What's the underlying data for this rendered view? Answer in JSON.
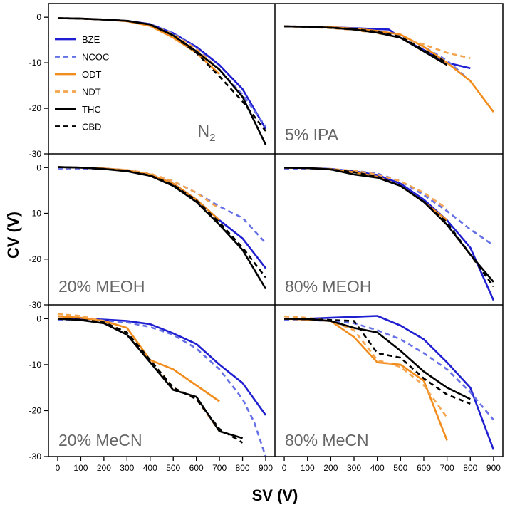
{
  "figure": {
    "ylabel": "CV (V)",
    "xlabel": "SV (V)",
    "legend": [
      "BZE",
      "NCOC",
      "ODT",
      "NDT",
      "THC",
      "CBD"
    ]
  },
  "series_styles": {
    "BZE": {
      "color": "#1f1fd1",
      "dash": "solid"
    },
    "NCOC": {
      "color": "#6670e6",
      "dash": "dashed"
    },
    "ODT": {
      "color": "#f28c1c",
      "dash": "solid"
    },
    "NDT": {
      "color": "#f5a550",
      "dash": "dashed"
    },
    "THC": {
      "color": "#000000",
      "dash": "solid"
    },
    "CBD": {
      "color": "#000000",
      "dash": "dashed"
    }
  },
  "chart_data": [
    {
      "type": "line",
      "panel_label": "N",
      "panel_label_sub": "2",
      "panel_position": "top-left",
      "xlim": [
        -40,
        940
      ],
      "ylim": [
        -30,
        3
      ],
      "xticks": [],
      "yticks": [
        0,
        -10,
        -20,
        -30
      ],
      "legend_position": "left",
      "series": [
        {
          "name": "BZE",
          "x": [
            0,
            100,
            200,
            300,
            400,
            500,
            600,
            700,
            800,
            900
          ],
          "y": [
            -0.2,
            -0.3,
            -0.5,
            -0.8,
            -1.5,
            -3.5,
            -6.5,
            -10.5,
            -15.8,
            -24.5
          ]
        },
        {
          "name": "NCOC",
          "x": [
            0,
            100,
            200,
            300,
            400,
            500,
            600,
            700,
            800,
            900
          ],
          "y": [
            -0.2,
            -0.3,
            -0.5,
            -0.8,
            -1.5,
            -3.5,
            -6.8,
            -11.5,
            -17.0,
            -24.0
          ]
        },
        {
          "name": "ODT",
          "x": [
            0,
            100,
            200,
            300,
            400,
            500,
            600,
            700
          ],
          "y": [
            -0.2,
            -0.3,
            -0.5,
            -0.9,
            -1.9,
            -4.5,
            -7.8,
            -12.5
          ]
        },
        {
          "name": "NDT",
          "x": [
            0,
            100,
            200,
            300,
            400,
            500,
            600,
            700
          ],
          "y": [
            -0.2,
            -0.3,
            -0.5,
            -0.8,
            -1.6,
            -3.8,
            -7.0,
            -11.5
          ]
        },
        {
          "name": "THC",
          "x": [
            0,
            100,
            200,
            300,
            400,
            500,
            600,
            700,
            800,
            900
          ],
          "y": [
            -0.2,
            -0.3,
            -0.5,
            -0.8,
            -1.6,
            -4.0,
            -7.5,
            -11.5,
            -17.5,
            -28.0
          ]
        },
        {
          "name": "CBD",
          "x": [
            0,
            100,
            200,
            300,
            400,
            500,
            600,
            700,
            800,
            900
          ],
          "y": [
            -0.2,
            -0.3,
            -0.5,
            -0.8,
            -1.6,
            -4.0,
            -7.8,
            -13.0,
            -18.5,
            -25.0
          ]
        }
      ]
    },
    {
      "type": "line",
      "panel_label": "5% IPA",
      "panel_position": "top-right",
      "xlim": [
        -40,
        940
      ],
      "ylim": [
        -30,
        3
      ],
      "xticks": [],
      "yticks": [],
      "series": [
        {
          "name": "BZE",
          "x": [
            0,
            100,
            200,
            300,
            400,
            450,
            500,
            600,
            700,
            800
          ],
          "y": [
            -2.0,
            -2.1,
            -2.2,
            -2.4,
            -2.6,
            -2.7,
            -4.5,
            -7.2,
            -10.0,
            -11.2
          ]
        },
        {
          "name": "NCOC",
          "x": [
            0,
            100,
            200,
            300,
            400,
            500,
            600,
            700,
            800
          ],
          "y": [
            -2.0,
            -2.1,
            -2.2,
            -2.5,
            -3.0,
            -4.0,
            -6.5,
            -9.5,
            -14.0
          ]
        },
        {
          "name": "ODT",
          "x": [
            0,
            100,
            200,
            300,
            400,
            500,
            600,
            700,
            800,
            900
          ],
          "y": [
            -2.0,
            -2.1,
            -2.2,
            -2.5,
            -3.0,
            -3.8,
            -6.5,
            -10.0,
            -14.0,
            -20.8
          ]
        },
        {
          "name": "NDT",
          "x": [
            0,
            100,
            200,
            300,
            400,
            500,
            600,
            700,
            800
          ],
          "y": [
            -2.0,
            -2.2,
            -2.4,
            -2.8,
            -3.5,
            -4.5,
            -6.0,
            -7.8,
            -9.0
          ]
        },
        {
          "name": "THC",
          "x": [
            0,
            100,
            200,
            300,
            400,
            500,
            600,
            700
          ],
          "y": [
            -2.0,
            -2.1,
            -2.3,
            -2.7,
            -3.4,
            -4.5,
            -7.5,
            -10.5
          ]
        },
        {
          "name": "CBD",
          "x": [
            0,
            100,
            200,
            300,
            400,
            500,
            600,
            700
          ],
          "y": [
            -2.0,
            -2.1,
            -2.3,
            -2.6,
            -3.2,
            -4.3,
            -7.2,
            -10.0
          ]
        }
      ]
    },
    {
      "type": "line",
      "panel_label": "20% MEOH",
      "panel_position": "middle-left",
      "xlim": [
        -40,
        940
      ],
      "ylim": [
        -30,
        3
      ],
      "xticks": [],
      "yticks": [
        0,
        -10,
        -20,
        -30
      ],
      "series": [
        {
          "name": "BZE",
          "x": [
            0,
            100,
            200,
            300,
            400,
            500,
            600,
            700,
            800,
            900
          ],
          "y": [
            0.1,
            0.0,
            -0.2,
            -0.6,
            -1.5,
            -3.5,
            -7.0,
            -11.5,
            -15.5,
            -22.0
          ]
        },
        {
          "name": "NCOC",
          "x": [
            0,
            100,
            200,
            300,
            400,
            500,
            600,
            700,
            800,
            900
          ],
          "y": [
            -0.2,
            -0.2,
            -0.3,
            -0.6,
            -1.4,
            -3.0,
            -5.5,
            -8.5,
            -11.0,
            -16.5
          ]
        },
        {
          "name": "ODT",
          "x": [
            0,
            100,
            200,
            300,
            400,
            500,
            600,
            700
          ],
          "y": [
            0.1,
            0.0,
            -0.2,
            -0.6,
            -1.5,
            -3.5,
            -7.0,
            -11.5
          ]
        },
        {
          "name": "NDT",
          "x": [
            0,
            100,
            200,
            300,
            400,
            500,
            600,
            700
          ],
          "y": [
            0.1,
            0.0,
            -0.2,
            -0.5,
            -1.3,
            -3.0,
            -5.5,
            -9.0
          ]
        },
        {
          "name": "THC",
          "x": [
            0,
            100,
            200,
            300,
            400,
            500,
            600,
            700,
            800,
            900
          ],
          "y": [
            0.1,
            0.0,
            -0.3,
            -0.8,
            -1.8,
            -4.0,
            -7.5,
            -12.5,
            -18.0,
            -26.5
          ]
        },
        {
          "name": "CBD",
          "x": [
            0,
            100,
            200,
            300,
            400,
            500,
            600,
            700,
            800,
            900
          ],
          "y": [
            0.1,
            0.0,
            -0.3,
            -0.7,
            -1.7,
            -3.8,
            -7.2,
            -12.0,
            -17.5,
            -24.0
          ]
        }
      ]
    },
    {
      "type": "line",
      "panel_label": "80% MEOH",
      "panel_position": "middle-right",
      "xlim": [
        -40,
        940
      ],
      "ylim": [
        -30,
        3
      ],
      "xticks": [],
      "yticks": [],
      "series": [
        {
          "name": "BZE",
          "x": [
            0,
            100,
            200,
            300,
            400,
            500,
            600,
            700,
            800,
            900
          ],
          "y": [
            0.0,
            -0.1,
            -0.3,
            -0.8,
            -1.6,
            -3.5,
            -7.0,
            -11.5,
            -17.5,
            -29.0
          ]
        },
        {
          "name": "NCOC",
          "x": [
            0,
            100,
            200,
            300,
            400,
            500,
            600,
            700,
            800,
            900
          ],
          "y": [
            -0.3,
            -0.3,
            -0.4,
            -0.7,
            -1.3,
            -3.0,
            -6.0,
            -9.5,
            -13.5,
            -17.0
          ]
        },
        {
          "name": "ODT",
          "x": [
            0,
            100,
            200,
            300,
            400,
            500,
            600,
            700
          ],
          "y": [
            0.0,
            -0.1,
            -0.4,
            -1.0,
            -2.0,
            -4.0,
            -7.5,
            -11.5
          ]
        },
        {
          "name": "NDT",
          "x": [
            0,
            100,
            200,
            300,
            400,
            500,
            600,
            700
          ],
          "y": [
            0.0,
            -0.1,
            -0.3,
            -0.7,
            -1.5,
            -3.0,
            -5.5,
            -9.0
          ]
        },
        {
          "name": "THC",
          "x": [
            0,
            100,
            200,
            300,
            400,
            500,
            600,
            700,
            800,
            900
          ],
          "y": [
            0.0,
            -0.1,
            -0.4,
            -1.5,
            -2.2,
            -4.0,
            -7.5,
            -12.5,
            -19.0,
            -25.0
          ]
        },
        {
          "name": "CBD",
          "x": [
            0,
            100,
            200,
            300,
            400,
            500,
            600,
            700,
            800,
            900
          ],
          "y": [
            0.0,
            -0.1,
            -0.4,
            -1.0,
            -2.0,
            -4.0,
            -7.5,
            -12.0,
            -19.0,
            -26.0
          ]
        }
      ]
    },
    {
      "type": "line",
      "panel_label": "20% MeCN",
      "panel_position": "bottom-left",
      "xlim": [
        -40,
        940
      ],
      "ylim": [
        -30,
        3
      ],
      "xticks": [
        0,
        100,
        200,
        300,
        400,
        500,
        600,
        700,
        800,
        900
      ],
      "yticks": [
        0,
        -10,
        -20,
        -30
      ],
      "series": [
        {
          "name": "BZE",
          "x": [
            0,
            100,
            200,
            300,
            400,
            500,
            600,
            700,
            800,
            900
          ],
          "y": [
            0.0,
            0.0,
            -0.2,
            -0.5,
            -1.2,
            -3.2,
            -5.5,
            -10.0,
            -14.0,
            -21.0
          ]
        },
        {
          "name": "NCOC",
          "x": [
            0,
            100,
            200,
            300,
            400,
            500,
            600,
            700,
            800,
            850,
            900
          ],
          "y": [
            -0.2,
            -0.2,
            -0.4,
            -0.8,
            -1.8,
            -3.5,
            -6.5,
            -11.0,
            -17.5,
            -22.5,
            -30.0
          ]
        },
        {
          "name": "ODT",
          "x": [
            0,
            100,
            200,
            300,
            400,
            450,
            500,
            600,
            700
          ],
          "y": [
            0.5,
            0.2,
            -0.5,
            -2.0,
            -9.0,
            -10.0,
            -11.0,
            -14.5,
            -18.0
          ]
        },
        {
          "name": "NDT",
          "x": [
            0,
            100,
            200,
            300,
            400,
            500,
            600,
            700,
            800
          ],
          "y": [
            1.0,
            0.6,
            -0.5,
            -3.5,
            -9.0,
            -15.0,
            -17.5,
            -24.5,
            -26.0
          ]
        },
        {
          "name": "THC",
          "x": [
            0,
            100,
            200,
            300,
            400,
            500,
            600,
            700,
            800
          ],
          "y": [
            0.0,
            -0.3,
            -1.0,
            -3.5,
            -9.5,
            -15.5,
            -17.0,
            -24.5,
            -26.0
          ]
        },
        {
          "name": "CBD",
          "x": [
            0,
            100,
            200,
            300,
            400,
            500,
            600,
            700,
            800
          ],
          "y": [
            0.0,
            -0.2,
            -0.8,
            -3.0,
            -9.0,
            -15.0,
            -17.5,
            -24.0,
            -27.0
          ]
        }
      ]
    },
    {
      "type": "line",
      "panel_label": "80% MeCN",
      "panel_position": "bottom-right",
      "xlim": [
        -40,
        940
      ],
      "ylim": [
        -30,
        3
      ],
      "xticks": [
        0,
        100,
        200,
        300,
        400,
        500,
        600,
        700,
        800,
        900
      ],
      "yticks": [],
      "series": [
        {
          "name": "BZE",
          "x": [
            0,
            100,
            200,
            300,
            400,
            500,
            600,
            700,
            800,
            900
          ],
          "y": [
            0.0,
            0.0,
            0.2,
            0.4,
            0.6,
            -1.5,
            -4.5,
            -9.5,
            -15.0,
            -28.5
          ]
        },
        {
          "name": "NCOC",
          "x": [
            0,
            100,
            200,
            300,
            400,
            500,
            600,
            700,
            800,
            900
          ],
          "y": [
            -0.2,
            -0.3,
            -0.5,
            -1.0,
            -2.5,
            -4.5,
            -7.5,
            -11.0,
            -16.0,
            -22.0
          ]
        },
        {
          "name": "ODT",
          "x": [
            0,
            100,
            200,
            300,
            400,
            500,
            600,
            700
          ],
          "y": [
            0.0,
            -0.2,
            -0.5,
            -4.0,
            -9.5,
            -10.0,
            -13.5,
            -26.5
          ]
        },
        {
          "name": "NDT",
          "x": [
            0,
            100,
            200,
            300,
            400,
            500,
            600,
            700
          ],
          "y": [
            0.5,
            0.2,
            -0.5,
            -2.5,
            -9.0,
            -10.5,
            -14.5,
            -21.5
          ]
        },
        {
          "name": "THC",
          "x": [
            0,
            100,
            200,
            300,
            400,
            500,
            600,
            700,
            800
          ],
          "y": [
            0.0,
            -0.1,
            -0.5,
            -2.0,
            -3.0,
            -7.0,
            -11.5,
            -15.0,
            -17.5
          ]
        },
        {
          "name": "CBD",
          "x": [
            0,
            100,
            200,
            300,
            400,
            500,
            600,
            700,
            800
          ],
          "y": [
            0.0,
            -0.1,
            -0.3,
            -0.5,
            -7.5,
            -8.5,
            -13.0,
            -16.5,
            -18.5
          ]
        }
      ]
    }
  ]
}
